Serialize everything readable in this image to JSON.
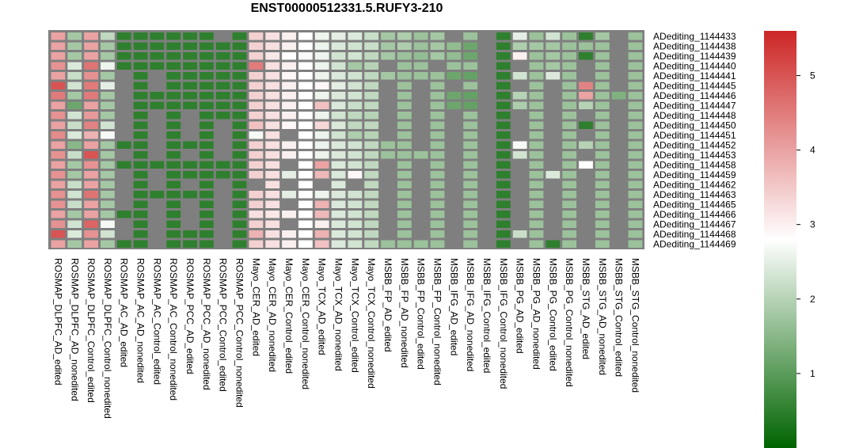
{
  "chart_data": {
    "type": "heatmap",
    "title": "ENST00000512331.5.RUFY3-210",
    "columns": [
      "ROSMAP_DLPFC_AD_edited",
      "ROSMAP_DLPFC_AD_nonedited",
      "ROSMAP_DLPFC_Control_edited",
      "ROSMAP_DLPFC_Control_nonedited",
      "ROSMAP_AC_AD_edited",
      "ROSMAP_AC_AD_nonedited",
      "ROSMAP_AC_Control_edited",
      "ROSMAP_AC_Control_nonedited",
      "ROSMAP_PCC_AD_edited",
      "ROSMAP_PCC_AD_nonedited",
      "ROSMAP_PCC_Control_edited",
      "ROSMAP_PCC_Control_nonedited",
      "Mayo_CER_AD_edited",
      "Mayo_CER_AD_nonedited",
      "Mayo_CER_Control_edited",
      "Mayo_CER_Control_nonedited",
      "Mayo_TCX_AD_edited",
      "Mayo_TCX_AD_nonedited",
      "Mayo_TCX_Control_edited",
      "Mayo_TCX_Control_nonedited",
      "MSBB_FP_AD_edited",
      "MSBB_FP_AD_nonedited",
      "MSBB_FP_Control_edited",
      "MSBB_FP_Control_nonedited",
      "MSBB_IFG_AD_edited",
      "MSBB_IFG_AD_nonedited",
      "MSBB_IFG_Control_edited",
      "MSBB_IFG_Control_nonedited",
      "MSBB_PG_AD_edited",
      "MSBB_PG_AD_nonedited",
      "MSBB_PG_Control_edited",
      "MSBB_PG_Control_nonedited",
      "MSBB_STG_AD_edited",
      "MSBB_STG_AD_nonedited",
      "MSBB_STG_Control_edited",
      "MSBB_STG_Control_nonedited"
    ],
    "rows": [
      "ADediting_1144433",
      "ADediting_1144438",
      "ADediting_1144439",
      "ADediting_1144440",
      "ADediting_1144441",
      "ADediting_1144445",
      "ADediting_1144446",
      "ADediting_1144447",
      "ADediting_1144448",
      "ADediting_1144450",
      "ADediting_1144451",
      "ADediting_1144452",
      "ADediting_1144453",
      "ADediting_1144458",
      "ADediting_1144459",
      "ADediting_1144462",
      "ADediting_1144463",
      "ADediting_1144465",
      "ADediting_1144466",
      "ADediting_1144467",
      "ADediting_1144468",
      "ADediting_1144469"
    ],
    "values": [
      [
        4.0,
        1.8,
        4.0,
        2.1,
        0.5,
        0.5,
        0.5,
        0.5,
        0.5,
        0.5,
        null,
        0.5,
        3.4,
        3.2,
        3.0,
        2.8,
        2.6,
        2.5,
        2.4,
        2.2,
        1.8,
        1.9,
        1.7,
        1.8,
        null,
        1.7,
        null,
        0.5,
        2.5,
        1.7,
        2.3,
        1.7,
        0.5,
        1.8,
        null,
        1.7
      ],
      [
        4.0,
        1.8,
        4.0,
        1.8,
        0.5,
        0.5,
        0.5,
        0.5,
        0.5,
        0.5,
        0.5,
        0.5,
        3.4,
        3.2,
        3.0,
        2.8,
        2.6,
        2.4,
        2.3,
        2.2,
        1.8,
        1.9,
        1.7,
        1.8,
        1.6,
        1.2,
        null,
        0.5,
        1.9,
        1.8,
        1.8,
        1.7,
        1.7,
        1.7,
        null,
        1.7
      ],
      [
        4.0,
        1.8,
        4.0,
        1.8,
        0.5,
        0.5,
        0.5,
        0.5,
        0.5,
        0.5,
        0.5,
        0.5,
        3.4,
        3.1,
        2.8,
        2.7,
        2.6,
        2.3,
        2.3,
        2.1,
        1.8,
        1.7,
        1.6,
        1.8,
        1.6,
        1.2,
        null,
        0.5,
        3.0,
        1.7,
        1.8,
        1.7,
        0.5,
        1.7,
        null,
        1.7
      ],
      [
        4.2,
        2.4,
        4.6,
        2.6,
        0.5,
        0.5,
        0.5,
        0.5,
        0.5,
        0.5,
        0.5,
        0.5,
        4.5,
        3.2,
        3.0,
        2.8,
        2.6,
        2.3,
        1.8,
        2.0,
        null,
        1.7,
        1.7,
        null,
        1.7,
        1.7,
        null,
        0.5,
        null,
        1.7,
        1.8,
        1.7,
        null,
        1.7,
        null,
        1.7
      ],
      [
        4.0,
        2.2,
        4.2,
        1.8,
        null,
        0.5,
        null,
        0.5,
        0.5,
        0.5,
        0.5,
        0.5,
        3.4,
        3.2,
        2.9,
        2.8,
        2.6,
        2.4,
        2.3,
        2.1,
        1.8,
        1.7,
        1.7,
        1.7,
        1.2,
        1.1,
        null,
        0.5,
        2.3,
        1.7,
        2.4,
        1.7,
        null,
        1.7,
        null,
        1.7
      ],
      [
        5.0,
        2.3,
        4.5,
        2.5,
        null,
        0.5,
        null,
        0.5,
        0.5,
        0.5,
        0.5,
        0.5,
        3.4,
        3.2,
        3.0,
        2.8,
        2.9,
        2.5,
        2.3,
        2.1,
        null,
        1.7,
        null,
        1.7,
        null,
        1.7,
        null,
        0.5,
        null,
        1.7,
        null,
        1.7,
        4.4,
        1.7,
        null,
        1.7
      ],
      [
        4.5,
        1.8,
        4.5,
        1.8,
        null,
        0.5,
        0.5,
        0.5,
        0.5,
        0.5,
        0.5,
        0.5,
        3.4,
        3.2,
        3.0,
        2.8,
        2.6,
        2.4,
        2.3,
        2.1,
        null,
        1.7,
        null,
        1.7,
        1.2,
        1.1,
        null,
        0.5,
        2.0,
        1.7,
        null,
        1.7,
        4.0,
        1.7,
        1.4,
        1.7
      ],
      [
        4.0,
        1.2,
        4.0,
        1.8,
        null,
        0.5,
        0.5,
        0.5,
        0.5,
        0.5,
        0.5,
        0.5,
        3.4,
        3.2,
        3.0,
        2.8,
        3.6,
        2.4,
        2.2,
        2.1,
        null,
        1.7,
        null,
        1.7,
        1.2,
        1.1,
        null,
        0.5,
        1.9,
        1.7,
        null,
        1.7,
        2.0,
        1.7,
        null,
        1.7
      ],
      [
        4.2,
        2.3,
        4.1,
        1.8,
        null,
        0.5,
        null,
        0.5,
        null,
        0.5,
        0.5,
        0.5,
        3.4,
        3.2,
        3.0,
        2.8,
        2.6,
        2.3,
        2.1,
        2.0,
        null,
        1.7,
        null,
        1.7,
        null,
        1.7,
        null,
        0.5,
        null,
        1.7,
        null,
        1.7,
        null,
        1.7,
        null,
        1.7
      ],
      [
        4.0,
        2.2,
        4.4,
        2.3,
        null,
        0.5,
        null,
        0.5,
        null,
        0.5,
        null,
        0.5,
        3.6,
        3.2,
        2.9,
        2.8,
        3.3,
        2.4,
        2.1,
        2.1,
        null,
        1.7,
        null,
        1.7,
        null,
        1.7,
        null,
        0.5,
        null,
        1.7,
        null,
        1.7,
        0.5,
        1.7,
        null,
        1.7
      ],
      [
        4.3,
        2.4,
        3.8,
        2.7,
        null,
        0.5,
        null,
        0.5,
        null,
        0.5,
        null,
        0.5,
        2.7,
        3.2,
        null,
        2.8,
        2.6,
        2.3,
        1.9,
        2.0,
        null,
        1.7,
        null,
        1.7,
        null,
        1.7,
        null,
        0.5,
        null,
        1.7,
        null,
        1.7,
        null,
        1.7,
        null,
        1.7
      ],
      [
        4.0,
        1.5,
        4.0,
        1.8,
        0.5,
        0.5,
        null,
        0.5,
        0.5,
        0.5,
        null,
        0.5,
        3.4,
        3.2,
        3.0,
        2.8,
        2.6,
        2.4,
        2.3,
        2.1,
        1.7,
        1.7,
        null,
        1.7,
        null,
        1.7,
        null,
        0.5,
        2.7,
        1.7,
        null,
        1.7,
        2.0,
        1.7,
        null,
        1.7
      ],
      [
        4.2,
        2.2,
        5.0,
        1.8,
        null,
        0.5,
        null,
        0.5,
        null,
        0.5,
        null,
        0.5,
        3.4,
        3.2,
        3.0,
        2.8,
        2.6,
        2.4,
        2.3,
        2.1,
        1.7,
        1.7,
        1.7,
        1.7,
        null,
        1.7,
        null,
        0.5,
        2.3,
        1.7,
        null,
        1.7,
        null,
        1.7,
        null,
        1.7
      ],
      [
        4.0,
        1.8,
        4.2,
        1.8,
        0.5,
        0.5,
        0.5,
        0.5,
        0.5,
        0.5,
        0.5,
        0.5,
        3.4,
        3.2,
        null,
        2.8,
        4.0,
        2.4,
        2.3,
        2.1,
        null,
        1.7,
        null,
        1.7,
        null,
        1.7,
        null,
        0.5,
        null,
        1.7,
        null,
        1.7,
        2.8,
        1.7,
        null,
        1.7
      ],
      [
        4.2,
        1.8,
        4.0,
        1.8,
        null,
        0.5,
        null,
        0.5,
        0.5,
        0.5,
        0.5,
        0.5,
        3.4,
        3.2,
        2.5,
        2.8,
        3.7,
        2.4,
        2.9,
        2.1,
        null,
        1.7,
        null,
        1.7,
        null,
        1.7,
        null,
        0.5,
        null,
        1.7,
        2.4,
        1.7,
        null,
        1.7,
        null,
        1.7
      ],
      [
        4.0,
        2.2,
        4.0,
        1.8,
        null,
        0.5,
        null,
        0.5,
        null,
        0.5,
        null,
        0.5,
        null,
        3.2,
        null,
        2.8,
        null,
        2.4,
        null,
        2.1,
        null,
        1.7,
        null,
        1.7,
        null,
        1.7,
        null,
        0.5,
        null,
        1.7,
        null,
        1.7,
        null,
        1.7,
        null,
        1.7
      ],
      [
        4.2,
        2.3,
        4.6,
        1.8,
        null,
        0.5,
        0.5,
        0.5,
        0.5,
        0.5,
        null,
        0.5,
        3.4,
        3.2,
        2.5,
        2.8,
        2.6,
        2.4,
        2.3,
        2.1,
        null,
        1.7,
        null,
        1.7,
        null,
        1.7,
        null,
        0.5,
        null,
        1.7,
        null,
        1.7,
        null,
        1.7,
        null,
        1.7
      ],
      [
        4.2,
        2.2,
        4.0,
        1.8,
        null,
        0.5,
        null,
        0.5,
        null,
        0.5,
        null,
        0.5,
        3.4,
        3.2,
        null,
        2.8,
        3.8,
        2.4,
        2.3,
        2.1,
        null,
        1.7,
        null,
        1.7,
        null,
        1.7,
        null,
        0.5,
        null,
        1.7,
        null,
        1.7,
        null,
        1.7,
        null,
        1.7
      ],
      [
        4.0,
        1.8,
        4.0,
        1.8,
        0.5,
        0.5,
        null,
        0.5,
        null,
        0.5,
        null,
        0.5,
        3.2,
        3.1,
        3.0,
        2.8,
        3.7,
        2.4,
        2.3,
        2.1,
        null,
        1.7,
        null,
        1.7,
        null,
        1.7,
        null,
        0.5,
        null,
        1.7,
        null,
        1.7,
        null,
        1.7,
        null,
        1.7
      ],
      [
        4.2,
        2.3,
        4.8,
        2.7,
        null,
        0.5,
        null,
        0.5,
        null,
        0.5,
        null,
        0.5,
        3.4,
        3.2,
        null,
        2.8,
        3.0,
        2.4,
        2.3,
        2.1,
        null,
        1.7,
        null,
        1.7,
        null,
        1.7,
        null,
        0.5,
        null,
        1.7,
        null,
        1.7,
        null,
        1.7,
        null,
        1.7
      ],
      [
        5.0,
        2.4,
        4.2,
        2.3,
        null,
        0.5,
        null,
        0.5,
        0.5,
        0.5,
        null,
        0.5,
        3.8,
        3.2,
        3.0,
        2.8,
        3.8,
        2.4,
        2.3,
        2.1,
        null,
        1.7,
        null,
        1.7,
        null,
        1.7,
        null,
        0.5,
        2.2,
        1.7,
        null,
        1.7,
        null,
        1.7,
        null,
        1.7
      ],
      [
        4.0,
        1.8,
        4.0,
        1.8,
        0.5,
        0.5,
        null,
        0.5,
        0.5,
        0.5,
        null,
        0.5,
        3.4,
        3.2,
        3.0,
        2.8,
        3.6,
        2.4,
        2.3,
        2.1,
        1.7,
        1.7,
        1.7,
        1.7,
        null,
        1.7,
        null,
        0.5,
        null,
        1.7,
        0.5,
        1.7,
        null,
        1.7,
        null,
        1.7
      ]
    ],
    "na_color": "#7f7f7f",
    "colorbar": {
      "min": 0,
      "max": 5.6,
      "ticks": [
        "1",
        "2",
        "3",
        "4",
        "5"
      ],
      "low_color": "#006400",
      "mid_color": "#ffffff",
      "high_color": "#cd2626"
    }
  }
}
